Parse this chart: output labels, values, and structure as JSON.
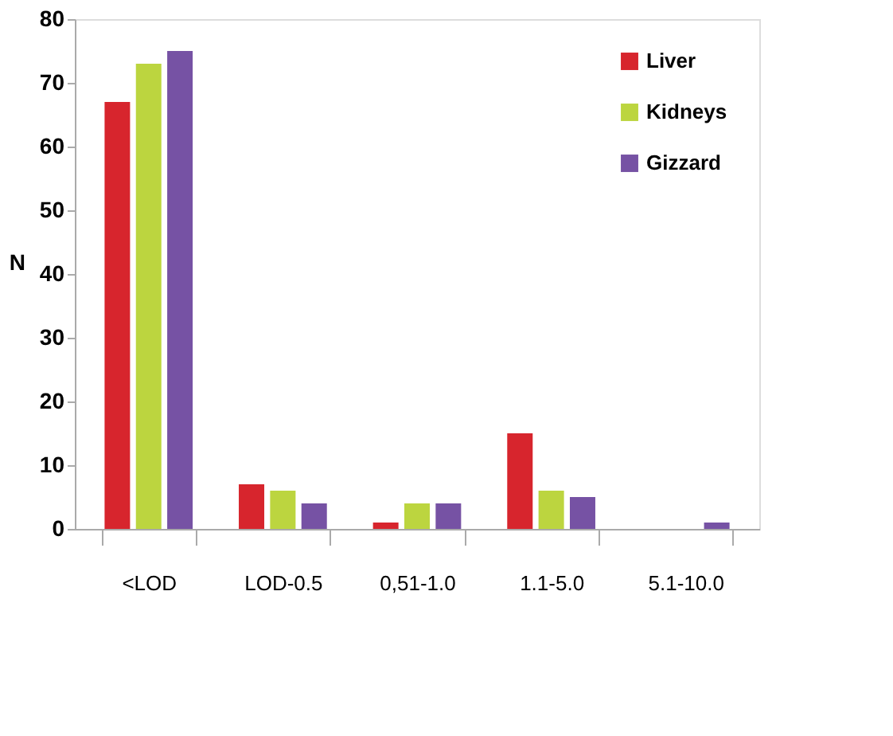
{
  "chart_data": {
    "type": "bar",
    "ylabel": "N",
    "categories": [
      "<LOD",
      "LOD-0.5",
      "0,51-1.0",
      "1.1-5.0",
      "5.1-10.0"
    ],
    "series": [
      {
        "name": "Liver",
        "color": "#d7252d",
        "values": [
          67,
          7,
          1,
          15,
          0
        ]
      },
      {
        "name": "Kidneys",
        "color": "#bcd53f",
        "values": [
          73,
          6,
          4,
          6,
          0
        ]
      },
      {
        "name": "Gizzard",
        "color": "#7652a4",
        "values": [
          75,
          4,
          4,
          5,
          1
        ]
      }
    ],
    "ylim": [
      0,
      80
    ],
    "yticks": [
      0,
      10,
      20,
      30,
      40,
      50,
      60,
      70,
      80
    ],
    "grid": false,
    "legend": "top right"
  }
}
